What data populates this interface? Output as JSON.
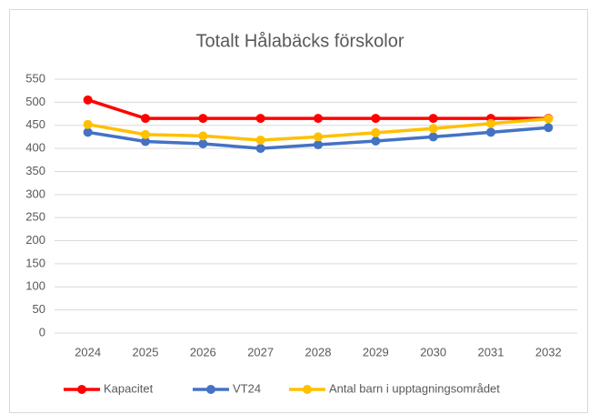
{
  "chart_data": {
    "type": "line",
    "title": "Totalt Hålabäcks förskolor",
    "categories": [
      "2024",
      "2025",
      "2026",
      "2027",
      "2028",
      "2029",
      "2030",
      "2031",
      "2032"
    ],
    "series": [
      {
        "name": "Kapacitet",
        "color": "#ff0000",
        "values": [
          505,
          465,
          465,
          465,
          465,
          465,
          465,
          465,
          465
        ]
      },
      {
        "name": "VT24",
        "color": "#4472c4",
        "values": [
          435,
          415,
          410,
          400,
          408,
          416,
          425,
          435,
          445
        ]
      },
      {
        "name": "Antal barn i upptagningsområdet",
        "color": "#ffc000",
        "values": [
          452,
          430,
          427,
          418,
          425,
          434,
          443,
          454,
          464
        ]
      }
    ],
    "ylim": [
      0,
      550
    ],
    "yticks": [
      0,
      50,
      100,
      150,
      200,
      250,
      300,
      350,
      400,
      450,
      500,
      550
    ],
    "grid": true,
    "legend": "bottom"
  }
}
